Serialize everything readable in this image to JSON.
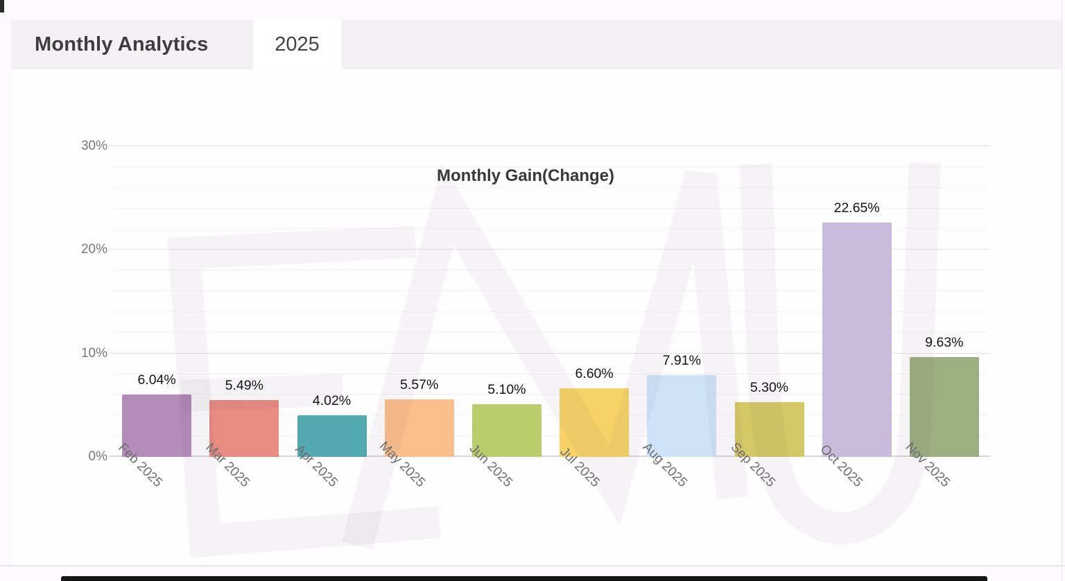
{
  "header": {
    "title": "Monthly Analytics",
    "tab": "2025"
  },
  "watermark_text": "EMU",
  "chart_data": {
    "type": "bar",
    "title": "Monthly Gain(Change)",
    "categories": [
      "Feb 2025",
      "Mar 2025",
      "Apr 2025",
      "May 2025",
      "Jun 2025",
      "Jul 2025",
      "Aug 2025",
      "Sep 2025",
      "Oct 2025",
      "Nov 2025"
    ],
    "values": [
      6.04,
      5.49,
      4.02,
      5.57,
      5.1,
      6.6,
      7.91,
      5.3,
      22.65,
      9.63
    ],
    "data_labels": [
      "6.04%",
      "5.49%",
      "4.02%",
      "5.57%",
      "5.10%",
      "6.60%",
      "7.91%",
      "5.30%",
      "22.65%",
      "9.63%"
    ],
    "bar_colors": [
      "#b48cba",
      "#e88c82",
      "#52a9b0",
      "#fbbf8e",
      "#bacc6b",
      "#f7d267",
      "#cee3f8",
      "#d5c866",
      "#c8bbdc",
      "#9dae80"
    ],
    "xlabel": "",
    "ylabel": "",
    "ylim": [
      0,
      30
    ],
    "y_ticks": [
      {
        "value": 0,
        "label": "0%"
      },
      {
        "value": 10,
        "label": "10%"
      },
      {
        "value": 20,
        "label": "20%"
      },
      {
        "value": 30,
        "label": "30%"
      }
    ],
    "minor_gridline_step": 2,
    "grid": true,
    "legend": false,
    "x_label_rotation_deg": 45
  }
}
